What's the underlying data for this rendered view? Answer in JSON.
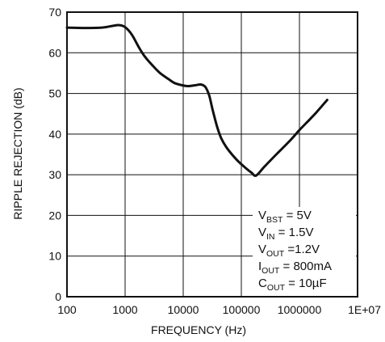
{
  "chart_data": {
    "type": "line",
    "xlabel": "FREQUENCY (Hz)",
    "ylabel": "RIPPLE REJECTION (dB)",
    "xscale": "log",
    "xlim": [
      100,
      10000000
    ],
    "ylim": [
      0,
      70
    ],
    "grid": true,
    "xtick_labels": [
      "100",
      "1000",
      "10000",
      "100000",
      "1000000",
      "1E+07"
    ],
    "ytick_labels": [
      "0",
      "10",
      "20",
      "30",
      "40",
      "50",
      "60",
      "70"
    ],
    "series": [
      {
        "x": [
          100,
          200,
          400,
          600,
          800,
          1000,
          1300,
          1700,
          2200,
          3000,
          4000,
          5500,
          7000,
          9000,
          12000,
          16000,
          20000,
          24000,
          28000,
          32000,
          38000,
          45000,
          55000,
          70000,
          90000,
          120000,
          150000,
          180000,
          250000,
          400000,
          700000,
          1000000,
          1500000,
          2000000,
          3000000
        ],
        "y": [
          66.2,
          66.1,
          66.2,
          66.6,
          66.8,
          66.3,
          64.5,
          61.5,
          59.0,
          56.8,
          55.0,
          53.6,
          52.6,
          52.1,
          51.8,
          52.0,
          52.2,
          51.6,
          49.5,
          46.0,
          42.0,
          39.0,
          36.8,
          34.9,
          33.2,
          31.6,
          30.5,
          29.8,
          32.0,
          35.0,
          38.5,
          41.0,
          43.6,
          45.5,
          48.4
        ]
      }
    ],
    "annotation": [
      {
        "main": "V",
        "sub": "BST",
        "rest": " = 5V"
      },
      {
        "main": "V",
        "sub": "IN",
        "rest": " = 1.5V"
      },
      {
        "main": "V",
        "sub": "OUT",
        "rest": " =1.2V"
      },
      {
        "main": "I",
        "sub": "OUT",
        "rest": " = 800mA"
      },
      {
        "main": "C",
        "sub": "OUT",
        "rest": " = 10µF"
      }
    ]
  }
}
